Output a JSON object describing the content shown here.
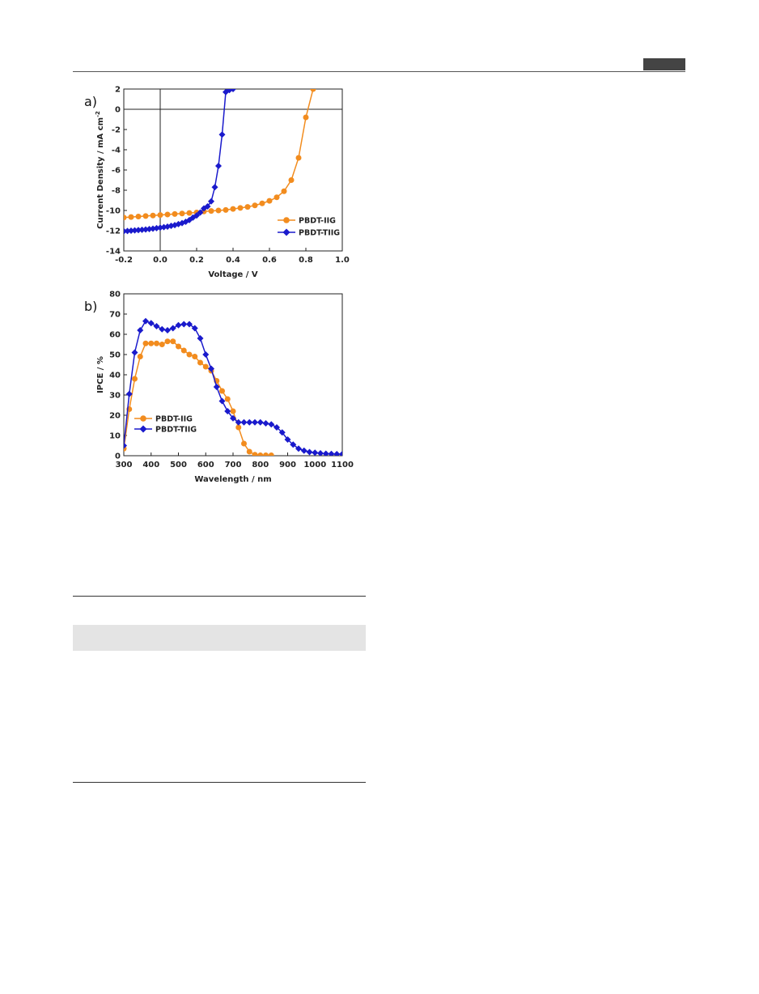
{
  "chart_data": [
    {
      "type": "line",
      "panel_label": "a)",
      "xlabel": "Voltage / V",
      "ylabel": "Current Density / mA cm",
      "ylabel_sup": "-2",
      "xlim": [
        -0.2,
        1.0
      ],
      "ylim": [
        -14,
        2
      ],
      "xticks": [
        -0.2,
        0.0,
        0.2,
        0.4,
        0.6,
        0.8,
        1.0
      ],
      "xtick_labels": [
        "-0.2",
        "0.0",
        "0.2",
        "0.4",
        "0.6",
        "0.8",
        "1.0"
      ],
      "yticks": [
        -14,
        -12,
        -10,
        -8,
        -6,
        -4,
        -2,
        0,
        2
      ],
      "ytick_labels": [
        "-14",
        "-12",
        "-10",
        "-8",
        "-6",
        "-4",
        "-2",
        "0",
        "2"
      ],
      "legend_position": "bottom-right",
      "grid": false,
      "series": [
        {
          "name": "PBDT-IIG",
          "color": "#f28c1e",
          "marker": "circle",
          "x": [
            -0.2,
            -0.16,
            -0.12,
            -0.08,
            -0.04,
            0.0,
            0.04,
            0.08,
            0.12,
            0.16,
            0.2,
            0.24,
            0.28,
            0.32,
            0.36,
            0.4,
            0.44,
            0.48,
            0.52,
            0.56,
            0.6,
            0.64,
            0.68,
            0.72,
            0.76,
            0.8,
            0.84,
            0.86
          ],
          "y": [
            -10.7,
            -10.65,
            -10.6,
            -10.55,
            -10.5,
            -10.45,
            -10.4,
            -10.35,
            -10.3,
            -10.25,
            -10.2,
            -10.1,
            -10.05,
            -10.0,
            -9.95,
            -9.85,
            -9.75,
            -9.65,
            -9.5,
            -9.3,
            -9.05,
            -8.7,
            -8.1,
            -7.0,
            -4.8,
            -0.8,
            2.0,
            3.0
          ]
        },
        {
          "name": "PBDT-TIIG",
          "color": "#1a1acc",
          "marker": "diamond",
          "x": [
            -0.2,
            -0.18,
            -0.16,
            -0.14,
            -0.12,
            -0.1,
            -0.08,
            -0.06,
            -0.04,
            -0.02,
            0.0,
            0.02,
            0.04,
            0.06,
            0.08,
            0.1,
            0.12,
            0.14,
            0.16,
            0.18,
            0.2,
            0.22,
            0.24,
            0.26,
            0.28,
            0.3,
            0.32,
            0.34,
            0.36,
            0.38,
            0.4
          ],
          "y": [
            -12.05,
            -12.03,
            -12.0,
            -11.97,
            -11.94,
            -11.91,
            -11.88,
            -11.84,
            -11.8,
            -11.75,
            -11.7,
            -11.65,
            -11.6,
            -11.52,
            -11.45,
            -11.35,
            -11.25,
            -11.12,
            -10.95,
            -10.7,
            -10.5,
            -10.2,
            -9.8,
            -9.6,
            -9.1,
            -7.7,
            -5.6,
            -2.5,
            1.7,
            1.9,
            2.0
          ]
        }
      ]
    },
    {
      "type": "line",
      "panel_label": "b)",
      "xlabel": "Wavelength / nm",
      "ylabel": "IPCE / %",
      "xlim": [
        300,
        1100
      ],
      "ylim": [
        0,
        80
      ],
      "xticks": [
        300,
        400,
        500,
        600,
        700,
        800,
        900,
        1000,
        1100
      ],
      "xtick_labels": [
        "300",
        "400",
        "500",
        "600",
        "700",
        "800",
        "900",
        "1000",
        "1100"
      ],
      "yticks": [
        0,
        10,
        20,
        30,
        40,
        50,
        60,
        70,
        80
      ],
      "ytick_labels": [
        "0",
        "10",
        "20",
        "30",
        "40",
        "50",
        "60",
        "70",
        "80"
      ],
      "legend_position": "middle-left",
      "grid": false,
      "series": [
        {
          "name": "PBDT-IIG",
          "color": "#f28c1e",
          "marker": "circle",
          "x": [
            300,
            320,
            340,
            360,
            380,
            400,
            420,
            440,
            460,
            480,
            500,
            520,
            540,
            560,
            580,
            600,
            620,
            640,
            660,
            680,
            700,
            720,
            740,
            760,
            780,
            800,
            820,
            840
          ],
          "y": [
            3.5,
            23,
            38,
            49,
            55.5,
            55.5,
            55.5,
            55,
            56.5,
            56.5,
            54,
            52,
            50,
            49,
            46,
            44,
            42,
            37,
            32,
            28,
            22,
            14,
            6,
            2,
            0.5,
            0.2,
            0.2,
            0.2
          ]
        },
        {
          "name": "PBDT-TIIG",
          "color": "#1a1acc",
          "marker": "diamond",
          "x": [
            300,
            320,
            340,
            360,
            380,
            400,
            420,
            440,
            460,
            480,
            500,
            520,
            540,
            560,
            580,
            600,
            620,
            640,
            660,
            680,
            700,
            720,
            740,
            760,
            780,
            800,
            820,
            840,
            860,
            880,
            900,
            920,
            940,
            960,
            980,
            1000,
            1020,
            1040,
            1060,
            1080,
            1100
          ],
          "y": [
            5,
            30.5,
            51,
            62,
            66.5,
            65.5,
            64,
            62.5,
            62,
            63,
            64.5,
            65,
            65,
            63,
            58,
            50,
            43,
            34,
            27,
            22,
            18.5,
            16.5,
            16.5,
            16.5,
            16.5,
            16.5,
            16,
            15.5,
            14,
            11.5,
            8,
            5.5,
            3.5,
            2.5,
            1.8,
            1.5,
            1.2,
            1.0,
            0.9,
            0.8,
            0.8
          ]
        }
      ]
    }
  ]
}
